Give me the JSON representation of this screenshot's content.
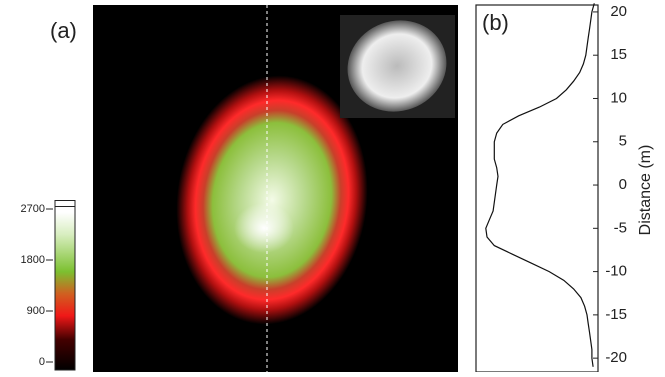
{
  "chart_data": [
    {
      "type": "image",
      "label": "(a)",
      "colorbar_lim": [
        0,
        2850
      ],
      "colorbar_ticks": [
        0,
        900,
        1800,
        2700
      ]
    },
    {
      "type": "line",
      "label": "(b)",
      "ylabel": "Distance (m)",
      "ylim": [
        -21.6,
        20.8
      ],
      "yticks": [
        20,
        15,
        10,
        5,
        0,
        -5,
        -10,
        -15,
        -20
      ],
      "xlim": [
        0,
        1
      ],
      "color": "#111111",
      "y": [
        21,
        20,
        19,
        18,
        17,
        16,
        15,
        14,
        13,
        12,
        11,
        10,
        9,
        8,
        7,
        6,
        5,
        4,
        3,
        2,
        1,
        0,
        -1,
        -2,
        -3,
        -4,
        -5,
        -6,
        -7,
        -8,
        -9,
        -10,
        -11,
        -12,
        -13,
        -14,
        -15,
        -16,
        -17,
        -18,
        -19,
        -20,
        -21
      ],
      "x": [
        0.97,
        0.95,
        0.94,
        0.93,
        0.92,
        0.91,
        0.9,
        0.88,
        0.85,
        0.8,
        0.74,
        0.66,
        0.52,
        0.35,
        0.22,
        0.17,
        0.15,
        0.15,
        0.15,
        0.17,
        0.18,
        0.17,
        0.16,
        0.15,
        0.14,
        0.11,
        0.08,
        0.09,
        0.15,
        0.3,
        0.45,
        0.6,
        0.72,
        0.8,
        0.86,
        0.89,
        0.91,
        0.92,
        0.93,
        0.94,
        0.95,
        0.95,
        0.96
      ]
    }
  ]
}
